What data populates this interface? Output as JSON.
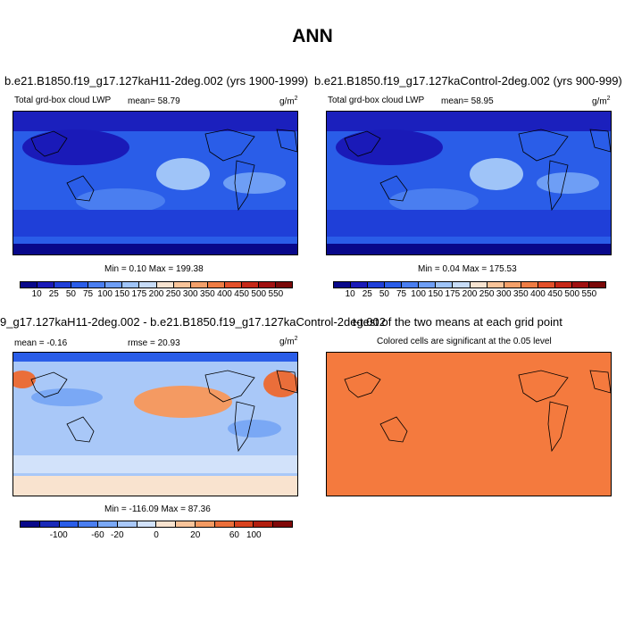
{
  "page": {
    "title": "ANN"
  },
  "chart_data": [
    {
      "type": "heatmap",
      "title": "b.e21.B1850.f19_g17.127kaH11-2deg.002 (yrs 1900-1999)",
      "subtitle": "Total grd-box cloud LWP",
      "mean": "mean=  58.79",
      "units": "g/m",
      "units_exp": "2",
      "minmax": "Min =   0.10 Max = 199.38",
      "colorbar": {
        "labels": [
          "10",
          "25",
          "50",
          "75",
          "100",
          "150",
          "175",
          "200",
          "250",
          "300",
          "350",
          "400",
          "450",
          "500",
          "550"
        ],
        "colors": [
          "#08088a",
          "#1a1ab8",
          "#1f3fd8",
          "#2a5de8",
          "#4a7ef0",
          "#6e9ef5",
          "#9fc4f8",
          "#c7dcf8",
          "#f7e3d0",
          "#f9c49a",
          "#f4a06a",
          "#ee7c44",
          "#e2502a",
          "#c62818",
          "#a01010",
          "#7a0808"
        ]
      }
    },
    {
      "type": "heatmap",
      "title": "b.e21.B1850.f19_g17.127kaControl-2deg.002 (yrs 900-999)",
      "subtitle": "Total grd-box cloud LWP",
      "mean": "mean=  58.95",
      "units": "g/m",
      "units_exp": "2",
      "minmax": "Min =   0.04 Max = 175.53",
      "colorbar": {
        "labels": [
          "10",
          "25",
          "50",
          "75",
          "100",
          "150",
          "175",
          "200",
          "250",
          "300",
          "350",
          "400",
          "450",
          "500",
          "550"
        ],
        "colors": [
          "#08088a",
          "#1a1ab8",
          "#1f3fd8",
          "#2a5de8",
          "#4a7ef0",
          "#6e9ef5",
          "#9fc4f8",
          "#c7dcf8",
          "#f7e3d0",
          "#f9c49a",
          "#f4a06a",
          "#ee7c44",
          "#e2502a",
          "#c62818",
          "#a01010",
          "#7a0808"
        ]
      }
    },
    {
      "type": "heatmap",
      "title": "9_g17.127kaH11-2deg.002 - b.e21.B1850.f19_g17.127kaControl-2deg.002",
      "mean": "mean =  -0.16",
      "rmse": "rmse =  20.93",
      "units": "g/m",
      "units_exp": "2",
      "minmax": "Min = -116.09 Max =  87.36",
      "colorbar": {
        "labels": [
          "-100",
          "-60",
          "-20",
          "0",
          "20",
          "60",
          "100"
        ],
        "colors": [
          "#08088a",
          "#1a2ab8",
          "#2a5de8",
          "#4a7ef0",
          "#7aa8f5",
          "#a9c8f8",
          "#d2e2fa",
          "#f9e3cf",
          "#f9c49a",
          "#f49a62",
          "#ea6e3a",
          "#d8421e",
          "#b21e0e",
          "#800808"
        ]
      }
    },
    {
      "type": "heatmap",
      "title": "t-test of the two means at each grid point",
      "subtitle": "Colored cells are significant at the 0.05 level",
      "fill_color": "#f47a3e"
    }
  ]
}
